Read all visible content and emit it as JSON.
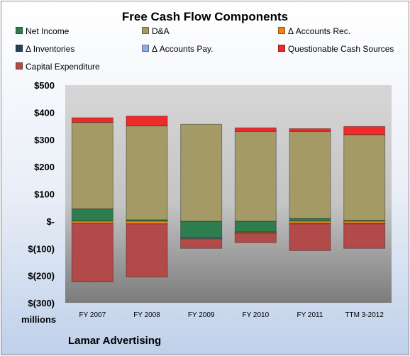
{
  "chart_data": {
    "type": "bar",
    "stacked": true,
    "title": "Free Cash Flow Components",
    "unit_label": "millions",
    "company": "Lamar Advertising",
    "categories": [
      "FY 2007",
      "FY 2008",
      "FY 2009",
      "FY 2010",
      "FY 2011",
      "TTM 3-2012"
    ],
    "ylim": [
      -300,
      500
    ],
    "yticks": [
      500,
      400,
      300,
      200,
      100,
      0,
      -100,
      -200,
      -300
    ],
    "ytick_labels": [
      "$500",
      "$400",
      "$300",
      "$200",
      "$100",
      "$-",
      "$(100)",
      "$(200)",
      "$(300)"
    ],
    "grid": false,
    "legend_position": "top",
    "series": [
      {
        "name": "Net Income",
        "color": "#2e7d4f",
        "values": [
          45,
          5,
          -60,
          -40,
          10,
          3
        ]
      },
      {
        "name": "D&A",
        "color": "#a39a66",
        "values": [
          318,
          345,
          356,
          330,
          320,
          315
        ]
      },
      {
        "name": "Δ Accounts Rec.",
        "color": "#e8861a",
        "values": [
          -8,
          -10,
          -3,
          -3,
          -8,
          -8
        ]
      },
      {
        "name": "Δ Inventories",
        "color": "#27405e",
        "values": [
          0,
          0,
          0,
          0,
          0,
          0
        ]
      },
      {
        "name": "Δ Accounts Pay.",
        "color": "#8ab0e0",
        "values": [
          0,
          0,
          -2,
          -1,
          -2,
          -2
        ]
      },
      {
        "name": "Questionable Cash Sources",
        "color": "#ee2a2a",
        "values": [
          17,
          36,
          0,
          13,
          10,
          30
        ]
      },
      {
        "name": "Capital Expenditure",
        "color": "#b24a4a",
        "values": [
          -215,
          -195,
          -35,
          -35,
          -98,
          -90
        ]
      }
    ]
  }
}
